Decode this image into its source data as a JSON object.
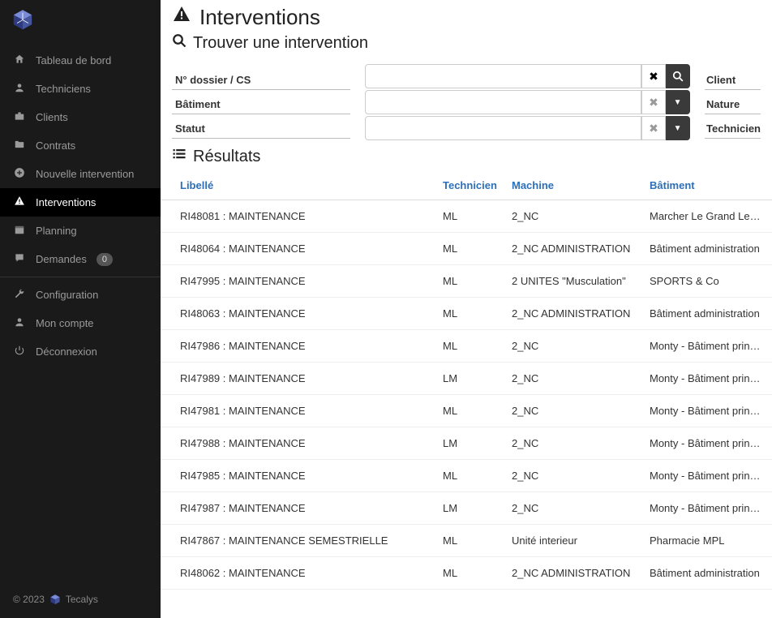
{
  "sidebar": {
    "items": [
      {
        "icon": "home",
        "label": "Tableau de bord"
      },
      {
        "icon": "user",
        "label": "Techniciens"
      },
      {
        "icon": "briefcase",
        "label": "Clients"
      },
      {
        "icon": "folder",
        "label": "Contrats"
      },
      {
        "icon": "plus-circle",
        "label": "Nouvelle intervention"
      },
      {
        "icon": "warning",
        "label": "Interventions",
        "active": true
      },
      {
        "icon": "calendar",
        "label": "Planning"
      },
      {
        "icon": "bubble",
        "label": "Demandes",
        "badge": "0"
      },
      {
        "icon": "wrench",
        "label": "Configuration"
      },
      {
        "icon": "user",
        "label": "Mon compte"
      },
      {
        "icon": "power",
        "label": "Déconnexion"
      }
    ],
    "divider_after": [
      7
    ]
  },
  "footer": {
    "text": "© 2023",
    "brand": "Tecalys"
  },
  "page": {
    "title": "Interventions",
    "subtitle": "Trouver une intervention",
    "results_label": "Résultats"
  },
  "filters": {
    "left_labels": [
      "N° dossier / CS",
      "Bâtiment",
      "Statut"
    ],
    "right_labels": [
      "Client",
      "Nature",
      "Technicien"
    ]
  },
  "table": {
    "columns": [
      "Libellé",
      "Technicien",
      "Machine",
      "Bâtiment"
    ],
    "rows": [
      [
        "RI48081 : MAINTENANCE",
        "ML",
        "2_NC",
        "Marcher Le Grand Lemps"
      ],
      [
        "RI48064 : MAINTENANCE",
        "ML",
        "2_NC ADMINISTRATION",
        "Bâtiment administration"
      ],
      [
        "RI47995 : MAINTENANCE",
        "ML",
        "2 UNITES \"Musculation\"",
        "SPORTS & Co"
      ],
      [
        "RI48063 : MAINTENANCE",
        "ML",
        "2_NC ADMINISTRATION",
        "Bâtiment administration"
      ],
      [
        "RI47986 : MAINTENANCE",
        "ML",
        "2_NC",
        "Monty - Bâtiment principal"
      ],
      [
        "RI47989 : MAINTENANCE",
        "LM",
        "2_NC",
        "Monty - Bâtiment principal"
      ],
      [
        "RI47981 : MAINTENANCE",
        "ML",
        "2_NC",
        "Monty - Bâtiment principal"
      ],
      [
        "RI47988 : MAINTENANCE",
        "LM",
        "2_NC",
        "Monty - Bâtiment principal"
      ],
      [
        "RI47985 : MAINTENANCE",
        "ML",
        "2_NC",
        "Monty - Bâtiment principal"
      ],
      [
        "RI47987 : MAINTENANCE",
        "LM",
        "2_NC",
        "Monty - Bâtiment principal"
      ],
      [
        "RI47867 : MAINTENANCE SEMESTRIELLE",
        "ML",
        "Unité interieur",
        "Pharmacie MPL"
      ],
      [
        "RI48062 : MAINTENANCE",
        "ML",
        "2_NC ADMINISTRATION",
        "Bâtiment administration"
      ]
    ]
  },
  "icons": {
    "home": "⌂",
    "user": "👤",
    "briefcase": "💼",
    "folder": "📁",
    "plus-circle": "✚",
    "warning": "⚠",
    "calendar": "▦",
    "bubble": "💬",
    "wrench": "🔧",
    "power": "⏻",
    "search": "🔍",
    "clear": "✖",
    "caret": "▾",
    "list": "≣"
  },
  "colors": {
    "sidebar_bg": "#1a1a1a",
    "link_blue": "#2d6fb8",
    "cube_top": "#7a8bd8",
    "cube_left": "#2e3a80",
    "cube_right": "#45559e"
  }
}
